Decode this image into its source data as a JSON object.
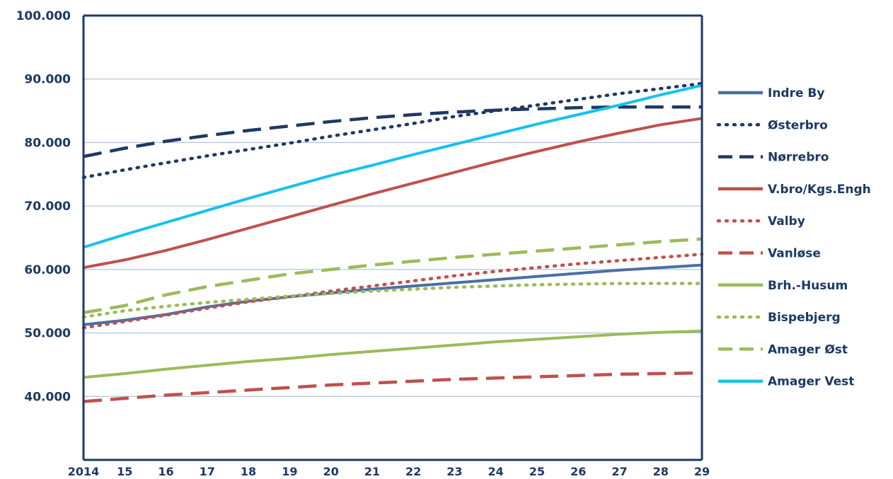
{
  "chart_data": {
    "type": "line",
    "x": [
      "2014",
      "15",
      "16",
      "17",
      "18",
      "19",
      "20",
      "21",
      "22",
      "23",
      "24",
      "25",
      "26",
      "27",
      "28",
      "29"
    ],
    "ylim": [
      30000,
      100000
    ],
    "yticks": [
      "40.000",
      "50.000",
      "60.000",
      "70.000",
      "80.000",
      "90.000",
      "100.000"
    ],
    "grid": true,
    "legend_position": "right",
    "series": [
      {
        "name": "Indre By",
        "color": "#4a6fa5",
        "style": "solid",
        "values": [
          51300,
          52000,
          52900,
          54100,
          55000,
          55700,
          56300,
          56900,
          57400,
          57900,
          58400,
          58900,
          59400,
          59900,
          60300,
          60700
        ]
      },
      {
        "name": "Østerbro",
        "color": "#1f3864",
        "style": "dotted",
        "values": [
          74500,
          75700,
          76800,
          77900,
          78900,
          79900,
          81000,
          82000,
          83000,
          84100,
          85000,
          85900,
          86800,
          87700,
          88500,
          89300
        ]
      },
      {
        "name": "Nørrebro",
        "color": "#1f3864",
        "style": "dashed",
        "values": [
          77800,
          79100,
          80200,
          81100,
          81900,
          82600,
          83300,
          83900,
          84400,
          84800,
          85100,
          85300,
          85500,
          85600,
          85600,
          85600
        ]
      },
      {
        "name": "V.bro/Kgs.Engh",
        "color": "#c0504d",
        "style": "solid",
        "values": [
          60300,
          61500,
          63000,
          64700,
          66500,
          68300,
          70100,
          71900,
          73600,
          75300,
          77000,
          78600,
          80100,
          81500,
          82800,
          83800
        ]
      },
      {
        "name": "Valby",
        "color": "#c0504d",
        "style": "dotted",
        "values": [
          50800,
          51800,
          52800,
          53900,
          54900,
          55700,
          56600,
          57400,
          58200,
          59000,
          59700,
          60300,
          60900,
          61400,
          61900,
          62400
        ]
      },
      {
        "name": "Vanløse",
        "color": "#c0504d",
        "style": "dashed",
        "values": [
          39200,
          39700,
          40200,
          40600,
          41000,
          41400,
          41800,
          42100,
          42400,
          42700,
          42900,
          43100,
          43300,
          43500,
          43600,
          43700
        ]
      },
      {
        "name": "Brh.-Husum",
        "color": "#9bbb59",
        "style": "solid",
        "values": [
          43000,
          43600,
          44300,
          44900,
          45500,
          46000,
          46600,
          47100,
          47600,
          48100,
          48600,
          49000,
          49400,
          49800,
          50100,
          50300
        ]
      },
      {
        "name": "Bispebjerg",
        "color": "#9bbb59",
        "style": "dotted",
        "values": [
          52500,
          53500,
          54200,
          54800,
          55300,
          55800,
          56200,
          56600,
          56900,
          57200,
          57400,
          57600,
          57700,
          57800,
          57800,
          57800
        ]
      },
      {
        "name": "Amager Øst",
        "color": "#9bbb59",
        "style": "dashed",
        "values": [
          53200,
          54300,
          56000,
          57300,
          58300,
          59300,
          60000,
          60700,
          61300,
          61900,
          62400,
          62900,
          63400,
          63900,
          64400,
          64800
        ]
      },
      {
        "name": "Amager Vest",
        "color": "#17c0f0",
        "style": "solid",
        "values": [
          63500,
          65500,
          67400,
          69300,
          71200,
          73000,
          74800,
          76400,
          78100,
          79700,
          81300,
          82900,
          84400,
          85900,
          87500,
          89000
        ]
      }
    ]
  }
}
